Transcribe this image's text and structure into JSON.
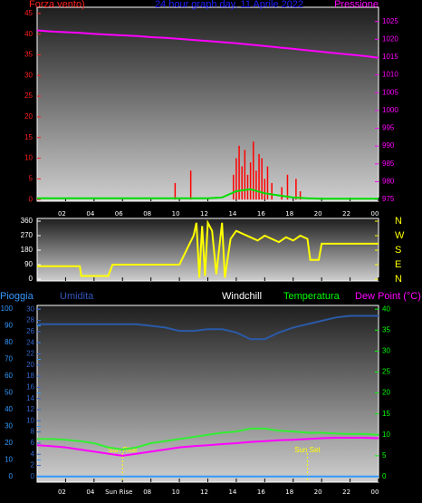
{
  "chart_data": [
    {
      "type": "line",
      "title": "24 hour graph day, 11 Aprile 2022",
      "ylabel": "Forza vento)",
      "y2label": "Pressione",
      "ylabel_color": "#ff2020",
      "y2label_color": "#ff00ff",
      "title_color": "#2020ff",
      "xlim": [
        0,
        24
      ],
      "xticks": [
        {
          "value": 2,
          "label": "02"
        },
        {
          "value": 4,
          "label": "04"
        },
        {
          "value": 6,
          "label": "06"
        },
        {
          "value": 8,
          "label": "08"
        },
        10,
        12,
        14,
        16,
        18,
        20,
        22,
        {
          "value": 24,
          "label": "00"
        }
      ],
      "ylim": [
        -0.4,
        46.5
      ],
      "yticks": [
        0,
        5,
        10,
        15,
        20,
        25,
        30,
        35,
        40,
        45
      ],
      "ycolor": "#ff2020",
      "y2lim": [
        974.5,
        1029
      ],
      "y2ticks": [
        975,
        980,
        985,
        990,
        995,
        1000,
        1005,
        1010,
        1015,
        1020,
        1025
      ],
      "y2color": "#ff00ff",
      "x": [
        0,
        1,
        2,
        3,
        4,
        5,
        6,
        7,
        8,
        9,
        10,
        11,
        12,
        13,
        14,
        15,
        16,
        17,
        18,
        19,
        20,
        21,
        22,
        23,
        24
      ],
      "series": [
        {
          "name": "Pressione",
          "axis": "y2",
          "color": "#ff00ff",
          "style": "line",
          "values": [
            1022.5,
            1022.2,
            1022,
            1021.8,
            1021.5,
            1021.3,
            1021.1,
            1020.9,
            1020.6,
            1020.4,
            1020.1,
            1019.8,
            1019.5,
            1019.2,
            1018.9,
            1018.5,
            1018.1,
            1017.7,
            1017.3,
            1016.9,
            1016.5,
            1016.1,
            1015.7,
            1015.3,
            1014.8
          ]
        },
        {
          "name": "Forza vento",
          "axis": "y",
          "color": "#ff0000",
          "style": "spike",
          "x": [
            9.7,
            10.8,
            13.8,
            14.0,
            14.2,
            14.4,
            14.6,
            14.8,
            15.0,
            15.2,
            15.4,
            15.6,
            15.8,
            16.0,
            16.2,
            16.5,
            17.2,
            17.6,
            18.2,
            18.5
          ],
          "values": [
            4,
            7,
            6,
            10,
            13,
            8,
            12,
            6,
            9,
            14,
            7,
            11,
            10,
            5,
            8,
            4,
            3,
            6,
            5,
            2
          ]
        },
        {
          "name": "Vento medio",
          "axis": "y",
          "color": "#00dd00",
          "style": "line",
          "values": [
            0.3,
            0.3,
            0.3,
            0.3,
            0.3,
            0.3,
            0.3,
            0.3,
            0.3,
            0.3,
            0.3,
            0.3,
            0.3,
            0.5,
            2,
            2.5,
            1.5,
            1,
            0.5,
            0.3,
            0.2,
            0.2,
            0.2,
            0.2,
            0.2
          ]
        }
      ]
    },
    {
      "type": "line",
      "xlim": [
        0,
        24
      ],
      "xticks": [
        2,
        4,
        6,
        8,
        10,
        12,
        14,
        16,
        18,
        20,
        22,
        24
      ],
      "ylim": [
        -11,
        377
      ],
      "yticks": [
        0,
        90,
        180,
        270,
        360
      ],
      "ycolor": "#ffffff",
      "y2lim": [
        -11,
        377
      ],
      "y2ticks": [
        {
          "value": 360,
          "label": "N"
        },
        {
          "value": 270,
          "label": "W"
        },
        {
          "value": 180,
          "label": "S"
        },
        {
          "value": 90,
          "label": "E"
        },
        {
          "value": 0,
          "label": "N"
        }
      ],
      "y2color": "#ffff00",
      "x": [
        0,
        3,
        3.1,
        5,
        5.3,
        10,
        10.5,
        11,
        11.2,
        11.4,
        11.6,
        11.8,
        12,
        12.3,
        12.6,
        13,
        13.2,
        13.6,
        14,
        14.5,
        15,
        15.5,
        16,
        16.5,
        17,
        17.5,
        18,
        18.5,
        19,
        19.2,
        19.8,
        20,
        24
      ],
      "series": [
        {
          "name": "Direzione",
          "axis": "y",
          "color": "#ffff00",
          "style": "line",
          "values": [
            80,
            80,
            20,
            20,
            90,
            90,
            180,
            270,
            350,
            10,
            330,
            20,
            350,
            300,
            30,
            350,
            10,
            250,
            300,
            280,
            260,
            240,
            270,
            250,
            230,
            260,
            240,
            270,
            250,
            120,
            120,
            220,
            220
          ]
        }
      ]
    },
    {
      "type": "line",
      "xlim": [
        0,
        24
      ],
      "xticks": [
        {
          "value": 2,
          "label": "02"
        },
        {
          "value": 4,
          "label": "04"
        },
        {
          "value": 6,
          "label": "Sun Rise"
        },
        {
          "value": 8,
          "label": "08"
        },
        10,
        12,
        14,
        16,
        18,
        20,
        22,
        {
          "value": 24,
          "label": "00"
        }
      ],
      "ylim": [
        -3.3,
        102.2
      ],
      "yticks": [
        0,
        10,
        20,
        30,
        40,
        50,
        60,
        70,
        80,
        90,
        100
      ],
      "ycolor": "#3399ff",
      "y3lim": [
        -1,
        30.7
      ],
      "y3ticks": [
        0,
        2,
        4,
        6,
        8,
        10,
        12,
        14,
        16,
        18,
        20,
        22,
        24,
        26,
        28,
        30
      ],
      "y3color": "#3366cc",
      "y2lim": [
        -1.3,
        40.9
      ],
      "y2ticks": [
        0,
        5,
        10,
        15,
        20,
        25,
        30,
        35,
        40
      ],
      "y2color": "#00ff00",
      "legend": [
        {
          "label": "Pioggia",
          "color": "#3399ff"
        },
        {
          "label": "Umidita",
          "color": "#3355bb"
        },
        {
          "label": "Windchill",
          "color": "#ffffff"
        },
        {
          "label": "Temperatura",
          "color": "#00ff00"
        },
        {
          "label": "Dew Point (°C)",
          "color": "#ff00ff"
        }
      ],
      "annotations": [
        {
          "x": 6,
          "label": "Sun Rise"
        },
        {
          "x": 19,
          "label": "Sun Set"
        }
      ],
      "x": [
        0,
        1,
        2,
        3,
        4,
        5,
        6,
        7,
        8,
        9,
        10,
        11,
        12,
        13,
        14,
        15,
        16,
        17,
        18,
        19,
        20,
        21,
        22,
        23,
        24
      ],
      "series": [
        {
          "name": "Umidita",
          "axis": "y",
          "color": "#2a5aa8",
          "style": "line",
          "values": [
            91,
            91,
            91,
            91,
            91,
            91,
            91,
            91,
            90,
            89,
            87,
            87,
            88,
            88,
            86,
            82,
            82,
            86,
            89,
            91,
            93,
            95,
            96,
            96,
            96
          ]
        },
        {
          "name": "Temperatura",
          "axis": "y2",
          "color": "#33ee33",
          "style": "line",
          "values": [
            9,
            9,
            8.8,
            8.5,
            8,
            7,
            6.5,
            7,
            8,
            8.5,
            9,
            9.5,
            10,
            10.5,
            10.8,
            11.5,
            11.5,
            11,
            10.8,
            10.5,
            10.5,
            10.3,
            10.2,
            10.2,
            10
          ]
        },
        {
          "name": "Dew Point",
          "axis": "y2",
          "color": "#ff00ff",
          "style": "line",
          "values": [
            7.5,
            7.3,
            7,
            6.5,
            6,
            5.5,
            5,
            5.5,
            6,
            6.5,
            7,
            7.3,
            7.5,
            7.8,
            8,
            8.3,
            8.5,
            8.7,
            8.8,
            9,
            9.2,
            9.3,
            9.3,
            9.3,
            9.2
          ]
        },
        {
          "name": "Pioggia",
          "axis": "y3",
          "color": "#3399ff",
          "style": "line",
          "values": [
            0,
            0,
            0,
            0,
            0,
            0,
            0,
            0,
            0,
            0,
            0,
            0,
            0,
            0,
            0,
            0,
            0,
            0,
            0,
            0,
            0,
            0,
            0,
            0,
            0
          ]
        }
      ]
    }
  ]
}
